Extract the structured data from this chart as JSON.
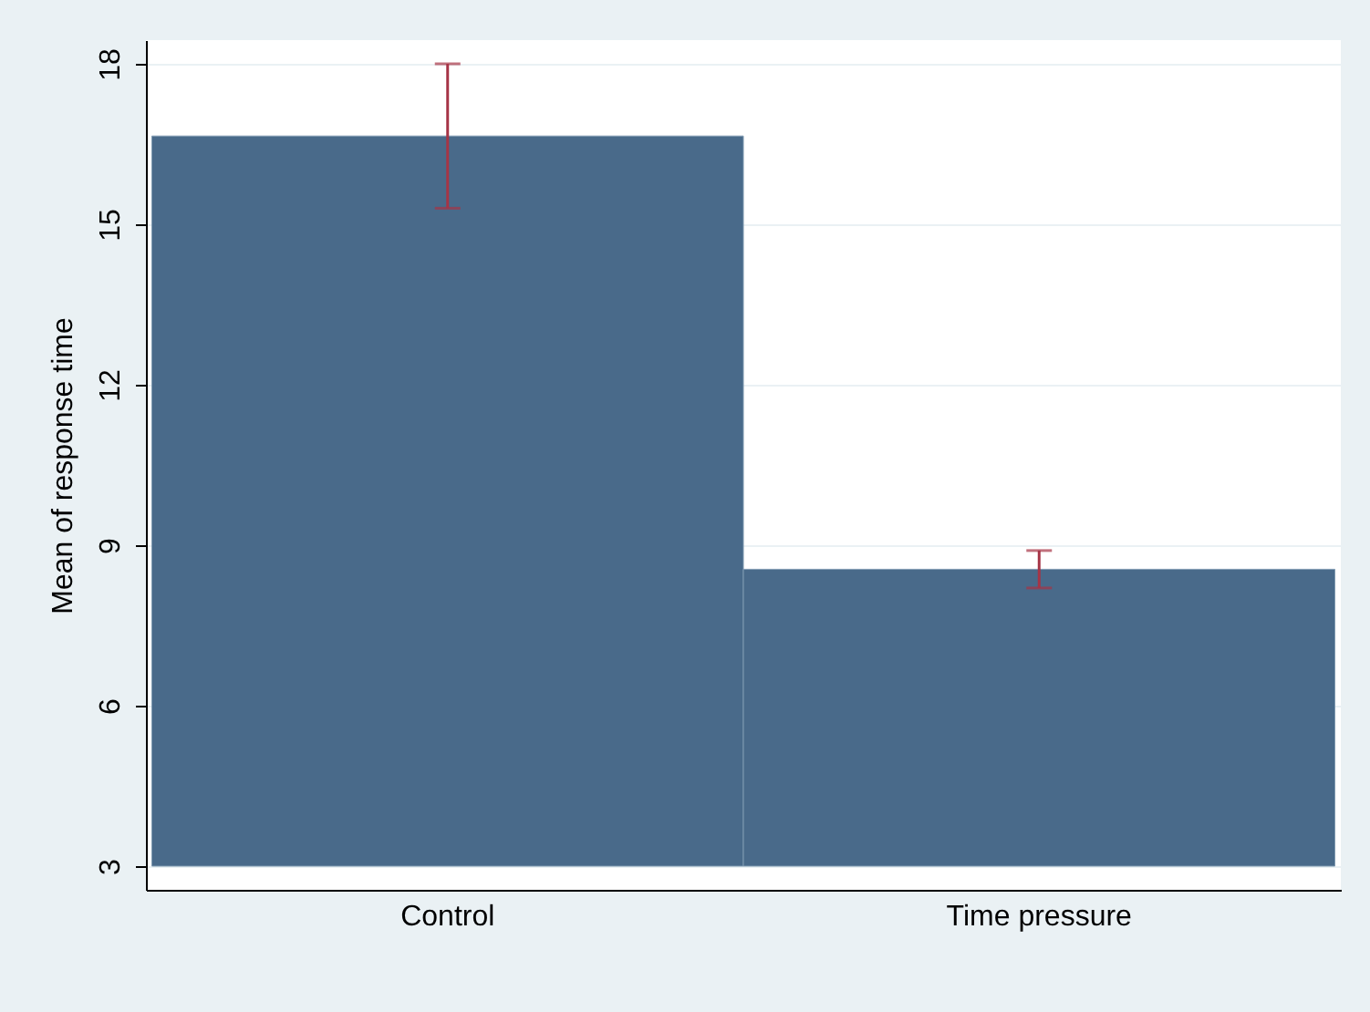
{
  "chart_data": {
    "type": "bar",
    "ylabel": "Mean of response time",
    "categories": [
      "Control",
      "Time pressure"
    ],
    "values": [
      16.65,
      8.55
    ],
    "errors": [
      1.35,
      0.35
    ],
    "color": "#496a8a",
    "ylim": [
      3,
      18
    ],
    "yticks": [
      3,
      6,
      9,
      12,
      15,
      18
    ],
    "grid": "y"
  }
}
